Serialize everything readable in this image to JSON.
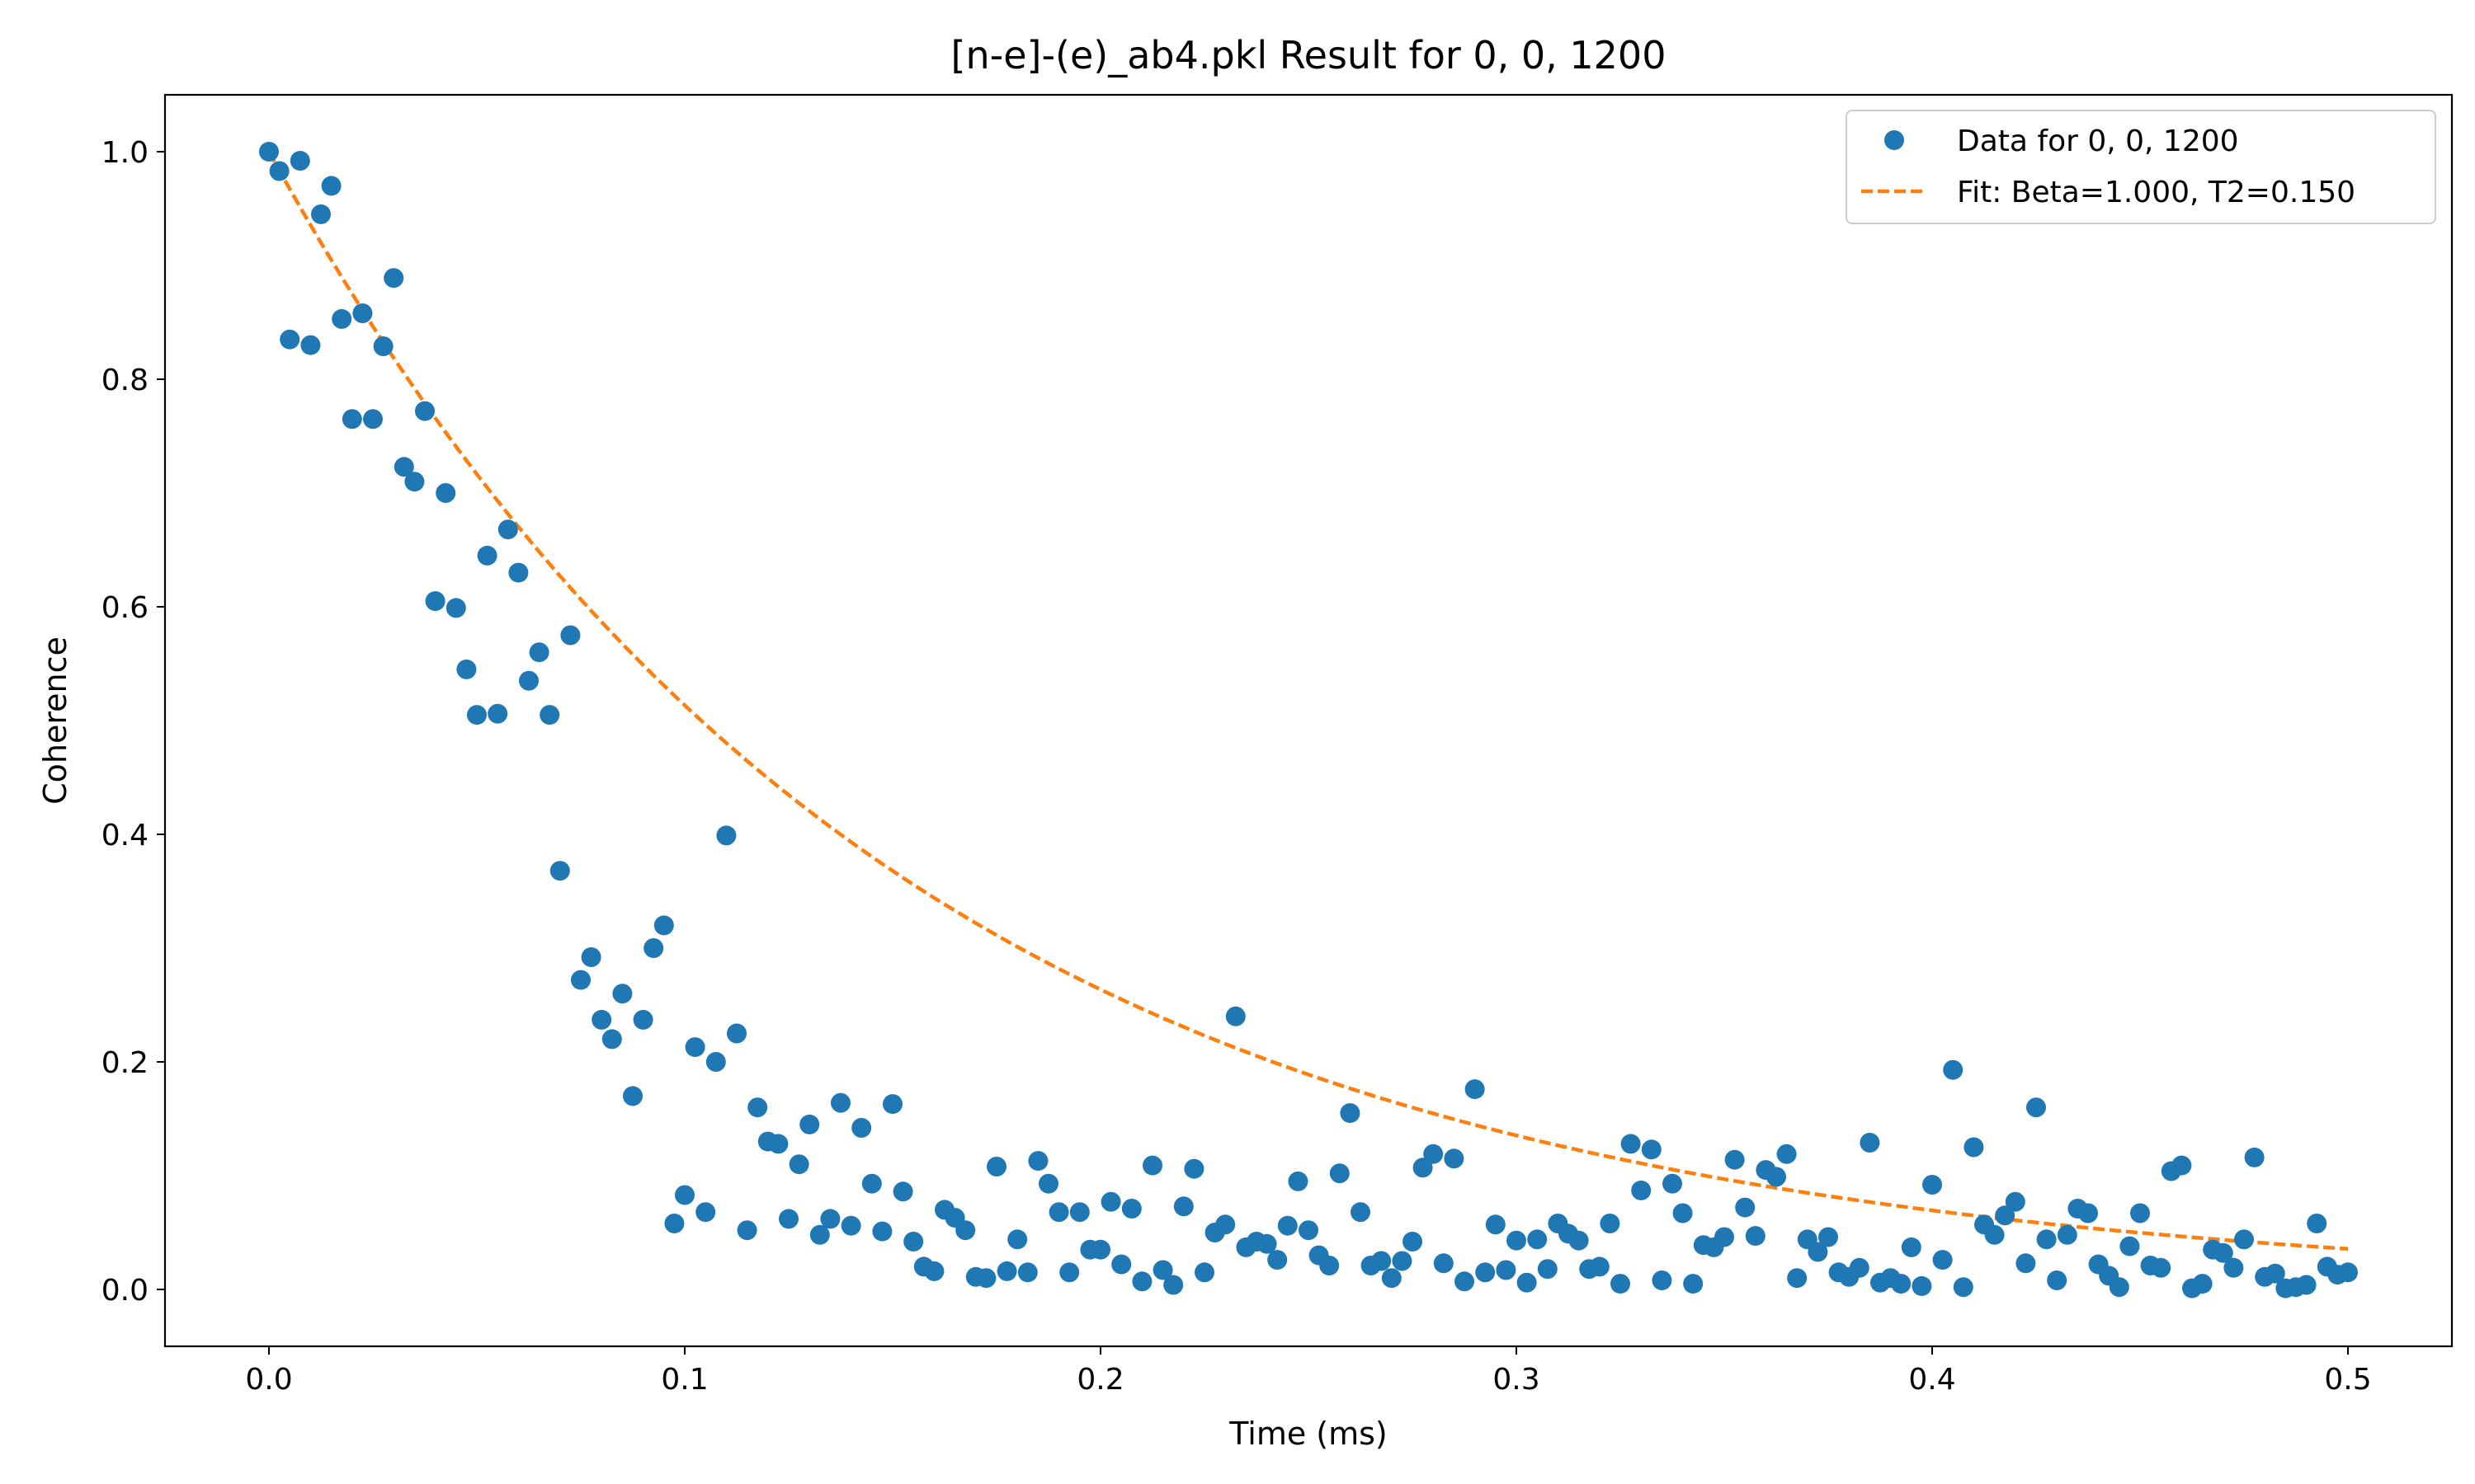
{
  "colors": {
    "data": "#1f77b4",
    "fit": "#ff7f0e",
    "frame": "#000000",
    "legend_border": "#cccccc"
  },
  "chart_data": {
    "type": "scatter",
    "title": "[n-e]-(e)_ab4.pkl Result for 0, 0, 1200",
    "xlabel": "Time (ms)",
    "ylabel": "Coherence",
    "xlim": [
      -0.025,
      0.525
    ],
    "ylim": [
      -0.05,
      1.05
    ],
    "grid": false,
    "legend_position": "top-right",
    "x_ticks": [
      0.0,
      0.1,
      0.2,
      0.3,
      0.4,
      0.5
    ],
    "x_tick_labels": [
      "0.0",
      "0.1",
      "0.2",
      "0.3",
      "0.4",
      "0.5"
    ],
    "y_ticks": [
      0.0,
      0.2,
      0.4,
      0.6,
      0.8,
      1.0
    ],
    "y_tick_labels": [
      "0.0",
      "0.2",
      "0.4",
      "0.6",
      "0.8",
      "1.0"
    ],
    "series": [
      {
        "name": "Data for 0, 0, 1200",
        "kind": "scatter",
        "points": [
          [
            0.0,
            1.0
          ],
          [
            0.0025,
            0.983
          ],
          [
            0.005,
            0.835
          ],
          [
            0.0075,
            0.992
          ],
          [
            0.01,
            0.83
          ],
          [
            0.0125,
            0.945
          ],
          [
            0.015,
            0.97
          ],
          [
            0.0175,
            0.853
          ],
          [
            0.02,
            0.765
          ],
          [
            0.0225,
            0.858
          ],
          [
            0.025,
            0.765
          ],
          [
            0.0275,
            0.829
          ],
          [
            0.03,
            0.889
          ],
          [
            0.0325,
            0.723
          ],
          [
            0.035,
            0.71
          ],
          [
            0.0375,
            0.772
          ],
          [
            0.04,
            0.605
          ],
          [
            0.0425,
            0.7
          ],
          [
            0.045,
            0.599
          ],
          [
            0.0475,
            0.545
          ],
          [
            0.05,
            0.505
          ],
          [
            0.0525,
            0.645
          ],
          [
            0.055,
            0.506
          ],
          [
            0.0575,
            0.668
          ],
          [
            0.06,
            0.63
          ],
          [
            0.0625,
            0.535
          ],
          [
            0.065,
            0.56
          ],
          [
            0.0675,
            0.505
          ],
          [
            0.07,
            0.368
          ],
          [
            0.0725,
            0.575
          ],
          [
            0.075,
            0.272
          ],
          [
            0.0775,
            0.292
          ],
          [
            0.08,
            0.237
          ],
          [
            0.0825,
            0.22
          ],
          [
            0.085,
            0.26
          ],
          [
            0.0875,
            0.17
          ],
          [
            0.09,
            0.237
          ],
          [
            0.0925,
            0.3
          ],
          [
            0.095,
            0.32
          ],
          [
            0.0975,
            0.058
          ],
          [
            0.1,
            0.083
          ],
          [
            0.1025,
            0.213
          ],
          [
            0.105,
            0.068
          ],
          [
            0.1075,
            0.2
          ],
          [
            0.11,
            0.399
          ],
          [
            0.1125,
            0.225
          ],
          [
            0.115,
            0.052
          ],
          [
            0.1175,
            0.16
          ],
          [
            0.12,
            0.13
          ],
          [
            0.1225,
            0.128
          ],
          [
            0.125,
            0.062
          ],
          [
            0.1275,
            0.11
          ],
          [
            0.13,
            0.145
          ],
          [
            0.1325,
            0.048
          ],
          [
            0.135,
            0.062
          ],
          [
            0.1375,
            0.164
          ],
          [
            0.14,
            0.056
          ],
          [
            0.1425,
            0.142
          ],
          [
            0.145,
            0.093
          ],
          [
            0.1475,
            0.051
          ],
          [
            0.15,
            0.163
          ],
          [
            0.1525,
            0.086
          ],
          [
            0.155,
            0.042
          ],
          [
            0.1575,
            0.02
          ],
          [
            0.16,
            0.016
          ],
          [
            0.1625,
            0.07
          ],
          [
            0.165,
            0.063
          ],
          [
            0.1675,
            0.052
          ],
          [
            0.17,
            0.011
          ],
          [
            0.1725,
            0.01
          ],
          [
            0.175,
            0.108
          ],
          [
            0.1775,
            0.016
          ],
          [
            0.18,
            0.044
          ],
          [
            0.1825,
            0.015
          ],
          [
            0.185,
            0.113
          ],
          [
            0.1875,
            0.093
          ],
          [
            0.19,
            0.068
          ],
          [
            0.1925,
            0.015
          ],
          [
            0.195,
            0.068
          ],
          [
            0.1975,
            0.035
          ],
          [
            0.2,
            0.035
          ],
          [
            0.2025,
            0.077
          ],
          [
            0.205,
            0.022
          ],
          [
            0.2075,
            0.071
          ],
          [
            0.21,
            0.007
          ],
          [
            0.2125,
            0.109
          ],
          [
            0.215,
            0.017
          ],
          [
            0.2175,
            0.004
          ],
          [
            0.22,
            0.073
          ],
          [
            0.2225,
            0.106
          ],
          [
            0.225,
            0.015
          ],
          [
            0.2275,
            0.05
          ],
          [
            0.23,
            0.057
          ],
          [
            0.2325,
            0.24
          ],
          [
            0.235,
            0.037
          ],
          [
            0.2375,
            0.042
          ],
          [
            0.24,
            0.04
          ],
          [
            0.2425,
            0.026
          ],
          [
            0.245,
            0.056
          ],
          [
            0.2475,
            0.095
          ],
          [
            0.25,
            0.052
          ],
          [
            0.2525,
            0.03
          ],
          [
            0.255,
            0.021
          ],
          [
            0.2575,
            0.102
          ],
          [
            0.26,
            0.155
          ],
          [
            0.2625,
            0.068
          ],
          [
            0.265,
            0.021
          ],
          [
            0.2675,
            0.025
          ],
          [
            0.27,
            0.01
          ],
          [
            0.2725,
            0.025
          ],
          [
            0.275,
            0.042
          ],
          [
            0.2775,
            0.107
          ],
          [
            0.28,
            0.119
          ],
          [
            0.2825,
            0.023
          ],
          [
            0.285,
            0.115
          ],
          [
            0.2875,
            0.007
          ],
          [
            0.29,
            0.176
          ],
          [
            0.2925,
            0.015
          ],
          [
            0.295,
            0.057
          ],
          [
            0.2975,
            0.017
          ],
          [
            0.3,
            0.043
          ],
          [
            0.3025,
            0.006
          ],
          [
            0.305,
            0.044
          ],
          [
            0.3075,
            0.018
          ],
          [
            0.31,
            0.058
          ],
          [
            0.3125,
            0.049
          ],
          [
            0.315,
            0.043
          ],
          [
            0.3175,
            0.018
          ],
          [
            0.32,
            0.02
          ],
          [
            0.3225,
            0.058
          ],
          [
            0.325,
            0.005
          ],
          [
            0.3275,
            0.128
          ],
          [
            0.33,
            0.087
          ],
          [
            0.3325,
            0.123
          ],
          [
            0.335,
            0.008
          ],
          [
            0.3375,
            0.093
          ],
          [
            0.34,
            0.067
          ],
          [
            0.3425,
            0.005
          ],
          [
            0.345,
            0.039
          ],
          [
            0.3475,
            0.037
          ],
          [
            0.35,
            0.046
          ],
          [
            0.3525,
            0.114
          ],
          [
            0.355,
            0.072
          ],
          [
            0.3575,
            0.047
          ],
          [
            0.36,
            0.105
          ],
          [
            0.3625,
            0.099
          ],
          [
            0.365,
            0.119
          ],
          [
            0.3675,
            0.01
          ],
          [
            0.37,
            0.044
          ],
          [
            0.3725,
            0.033
          ],
          [
            0.375,
            0.046
          ],
          [
            0.3775,
            0.015
          ],
          [
            0.38,
            0.011
          ],
          [
            0.3825,
            0.019
          ],
          [
            0.385,
            0.129
          ],
          [
            0.3875,
            0.006
          ],
          [
            0.39,
            0.01
          ],
          [
            0.3925,
            0.005
          ],
          [
            0.395,
            0.037
          ],
          [
            0.3975,
            0.003
          ],
          [
            0.4,
            0.092
          ],
          [
            0.4025,
            0.026
          ],
          [
            0.405,
            0.193
          ],
          [
            0.4075,
            0.002
          ],
          [
            0.41,
            0.125
          ],
          [
            0.4125,
            0.057
          ],
          [
            0.415,
            0.048
          ],
          [
            0.4175,
            0.065
          ],
          [
            0.42,
            0.077
          ],
          [
            0.4225,
            0.023
          ],
          [
            0.425,
            0.16
          ],
          [
            0.4275,
            0.044
          ],
          [
            0.43,
            0.008
          ],
          [
            0.4325,
            0.048
          ],
          [
            0.435,
            0.071
          ],
          [
            0.4375,
            0.067
          ],
          [
            0.44,
            0.022
          ],
          [
            0.4425,
            0.012
          ],
          [
            0.445,
            0.002
          ],
          [
            0.4475,
            0.038
          ],
          [
            0.45,
            0.067
          ],
          [
            0.4525,
            0.021
          ],
          [
            0.455,
            0.019
          ],
          [
            0.4575,
            0.104
          ],
          [
            0.46,
            0.109
          ],
          [
            0.4625,
            0.001
          ],
          [
            0.465,
            0.005
          ],
          [
            0.4675,
            0.035
          ],
          [
            0.47,
            0.032
          ],
          [
            0.4725,
            0.019
          ],
          [
            0.475,
            0.044
          ],
          [
            0.4775,
            0.116
          ],
          [
            0.48,
            0.011
          ],
          [
            0.4825,
            0.014
          ],
          [
            0.485,
            0.001
          ],
          [
            0.4875,
            0.002
          ],
          [
            0.49,
            0.004
          ],
          [
            0.4925,
            0.058
          ],
          [
            0.495,
            0.02
          ],
          [
            0.4975,
            0.013
          ],
          [
            0.5,
            0.015
          ]
        ]
      },
      {
        "name": "Fit: Beta=1.000, T2=0.150",
        "kind": "line",
        "style": "dashed",
        "beta": 1.0,
        "t2": 0.15,
        "x_range": [
          0.0,
          0.5
        ]
      }
    ]
  }
}
